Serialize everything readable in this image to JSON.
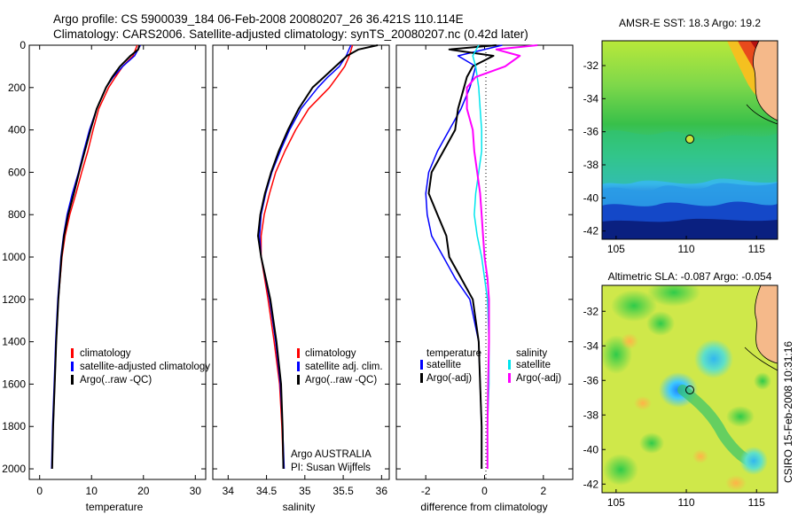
{
  "header": {
    "line1": "Argo profile: CS 5900039_184 06-Feb-2008 20080207_26 36.421S 110.114E",
    "line2": "Climatology: CARS2006. Satellite-adjusted climatology: synTS_20080207.nc (0.42d later)"
  },
  "side_text": "CSIRO 15-Feb-2008 10:31:16",
  "colors": {
    "climatology": "#ff0000",
    "satellite": "#0000ff",
    "argo": "#000000",
    "sat_diff_salinity": "#00e5ee",
    "argo_diff_salinity": "#ff00ff"
  },
  "chart_data": [
    {
      "type": "line",
      "xlabel": "temperature",
      "ylabel": "",
      "xlim": [
        -2,
        32
      ],
      "ylim": [
        2050,
        0
      ],
      "xticks": [
        "0",
        "10",
        "20",
        "30"
      ],
      "yticks": [
        "0",
        "200",
        "400",
        "600",
        "800",
        "1000",
        "1200",
        "1400",
        "1600",
        "1800",
        "2000"
      ],
      "legend": {
        "placement": "lower-right",
        "entries": [
          "climatology",
          "satellite-adjusted climatology",
          "Argo(..raw -QC)"
        ]
      },
      "series": [
        {
          "name": "climatology",
          "depth": [
            0,
            50,
            100,
            150,
            200,
            300,
            400,
            500,
            600,
            700,
            800,
            900,
            1000,
            1200,
            1400,
            1600,
            1800,
            2000
          ],
          "values": [
            18.8,
            18.0,
            16.0,
            14.6,
            13.3,
            11.4,
            10.3,
            9.3,
            8.1,
            7.0,
            5.8,
            4.9,
            4.3,
            3.6,
            3.2,
            2.9,
            2.6,
            2.4
          ]
        },
        {
          "name": "satellite-adjusted climatology",
          "depth": [
            0,
            50,
            100,
            150,
            200,
            300,
            400,
            500,
            600,
            700,
            800,
            900,
            1000,
            1200,
            1400,
            1600,
            1800,
            2000
          ],
          "values": [
            19.4,
            18.3,
            16.0,
            14.2,
            12.8,
            11.0,
            9.6,
            8.5,
            7.5,
            6.3,
            5.3,
            4.6,
            4.1,
            3.5,
            3.1,
            2.8,
            2.5,
            2.3
          ]
        },
        {
          "name": "Argo(..raw -QC)",
          "depth": [
            0,
            20,
            50,
            100,
            150,
            200,
            300,
            400,
            500,
            600,
            700,
            800,
            900,
            1000,
            1200,
            1400,
            1600,
            1800,
            2000
          ],
          "values": [
            19.2,
            19.0,
            17.5,
            15.5,
            14.0,
            12.8,
            11.0,
            9.8,
            8.7,
            7.6,
            6.6,
            5.5,
            4.7,
            4.2,
            3.6,
            3.2,
            2.9,
            2.6,
            2.4
          ]
        }
      ]
    },
    {
      "type": "line",
      "xlabel": "salinity",
      "xlim": [
        33.8,
        36.1
      ],
      "ylim": [
        2050,
        0
      ],
      "xticks": [
        "34",
        "34.5",
        "35",
        "35.5",
        "36"
      ],
      "legend": {
        "placement": "lower-right",
        "entries": [
          "climatology",
          "satellite adj. clim.",
          "Argo(..raw -QC)"
        ]
      },
      "annotation": [
        "Argo AUSTRALIA",
        "PI: Susan Wijffels"
      ],
      "series": [
        {
          "name": "climatology",
          "depth": [
            0,
            50,
            100,
            150,
            200,
            300,
            400,
            500,
            600,
            700,
            800,
            900,
            1000,
            1200,
            1400,
            1600,
            1800,
            2000
          ],
          "values": [
            35.62,
            35.58,
            35.52,
            35.42,
            35.32,
            35.05,
            34.88,
            34.74,
            34.62,
            34.54,
            34.47,
            34.43,
            34.43,
            34.52,
            34.6,
            34.67,
            34.7,
            34.72
          ]
        },
        {
          "name": "satellite adj. clim.",
          "depth": [
            0,
            50,
            100,
            150,
            200,
            300,
            400,
            500,
            600,
            700,
            800,
            900,
            1000,
            1200,
            1400,
            1600,
            1800,
            2000
          ],
          "values": [
            35.6,
            35.54,
            35.45,
            35.3,
            35.17,
            34.95,
            34.8,
            34.68,
            34.57,
            34.49,
            34.43,
            34.41,
            34.43,
            34.54,
            34.62,
            34.68,
            34.71,
            34.73
          ]
        },
        {
          "name": "Argo(..raw -QC)",
          "depth": [
            0,
            20,
            50,
            100,
            150,
            200,
            300,
            400,
            500,
            600,
            700,
            800,
            900,
            1000,
            1200,
            1400,
            1600,
            1800,
            2000
          ],
          "values": [
            35.95,
            35.7,
            35.55,
            35.4,
            35.25,
            35.1,
            34.92,
            34.78,
            34.66,
            34.56,
            34.48,
            34.42,
            34.39,
            34.43,
            34.55,
            34.63,
            34.69,
            34.71,
            34.72
          ]
        }
      ]
    },
    {
      "type": "line",
      "xlabel": "difference from climatology",
      "xlim": [
        -3,
        3
      ],
      "ylim": [
        2050,
        0
      ],
      "xticks": [
        "-2",
        "0",
        "2"
      ],
      "legend": {
        "placement": "lower-right",
        "temperature_heading": "temperature",
        "salinity_heading": "salinity",
        "entries": [
          "satellite",
          "Argo(-adj)",
          "satellite",
          "Argo(-adj)"
        ]
      },
      "series": [
        {
          "name": "satellite",
          "group": "temperature",
          "depth": [
            0,
            50,
            100,
            200,
            300,
            400,
            500,
            600,
            700,
            800,
            900,
            1000,
            1100,
            1200,
            1400,
            1600,
            1800,
            2000
          ],
          "values": [
            0.6,
            -0.9,
            -0.3,
            -0.5,
            -0.8,
            -1.2,
            -1.6,
            -1.9,
            -2.0,
            -1.95,
            -1.8,
            -1.4,
            -1.0,
            -0.5,
            -0.2,
            -0.15,
            -0.1,
            -0.1
          ]
        },
        {
          "name": "Argo(-adj)",
          "group": "temperature",
          "depth": [
            0,
            20,
            50,
            100,
            150,
            200,
            300,
            400,
            500,
            600,
            700,
            800,
            900,
            1000,
            1100,
            1200,
            1400,
            1600,
            1800,
            2000
          ],
          "values": [
            0.4,
            -1.2,
            0.3,
            -0.4,
            -0.6,
            -0.7,
            -0.9,
            -1.0,
            -1.4,
            -1.8,
            -1.9,
            -1.6,
            -1.3,
            -1.2,
            -0.8,
            -0.4,
            -0.2,
            -0.15,
            -0.1,
            -0.1
          ]
        },
        {
          "name": "satellite",
          "group": "salinity",
          "depth": [
            0,
            50,
            100,
            200,
            300,
            400,
            500,
            600,
            700,
            800,
            900,
            1000,
            1200,
            1400,
            1600,
            1800,
            2000
          ],
          "values": [
            -0.2,
            -0.4,
            -0.3,
            -0.2,
            -0.15,
            -0.1,
            -0.1,
            -0.2,
            -0.3,
            -0.35,
            -0.25,
            -0.1,
            0.1,
            0.15,
            0.15,
            0.1,
            0.1
          ]
        },
        {
          "name": "Argo(-adj)",
          "group": "salinity",
          "depth": [
            0,
            20,
            50,
            100,
            150,
            200,
            300,
            400,
            500,
            600,
            700,
            800,
            900,
            1000,
            1100,
            1200,
            1400,
            1600,
            1800,
            2000
          ],
          "values": [
            1.8,
            0.4,
            1.2,
            0.7,
            -0.3,
            -0.6,
            -0.6,
            -0.4,
            -0.35,
            -0.25,
            -0.15,
            -0.1,
            -0.05,
            0.0,
            0.1,
            0.15,
            0.15,
            0.12,
            0.1,
            0.1
          ]
        }
      ]
    },
    {
      "type": "heatmap",
      "title": "AMSR-E SST: 18.3 Argo: 19.2",
      "xlim": [
        104,
        116.5
      ],
      "ylim": [
        -42.5,
        -30.5
      ],
      "xticks": [
        "105",
        "110",
        "115"
      ],
      "yticks": [
        "-32",
        "-34",
        "-36",
        "-38",
        "-40",
        "-42"
      ],
      "marker": {
        "lon": 110.114,
        "lat": -36.421
      }
    },
    {
      "type": "heatmap",
      "title": "Altimetric SLA: -0.087 Argo: -0.054",
      "xlim": [
        104,
        116.5
      ],
      "ylim": [
        -42.5,
        -30.5
      ],
      "xticks": [
        "105",
        "110",
        "115"
      ],
      "yticks": [
        "-32",
        "-34",
        "-36",
        "-38",
        "-40",
        "-42"
      ],
      "marker": {
        "lon": 110.114,
        "lat": -36.421
      }
    }
  ]
}
